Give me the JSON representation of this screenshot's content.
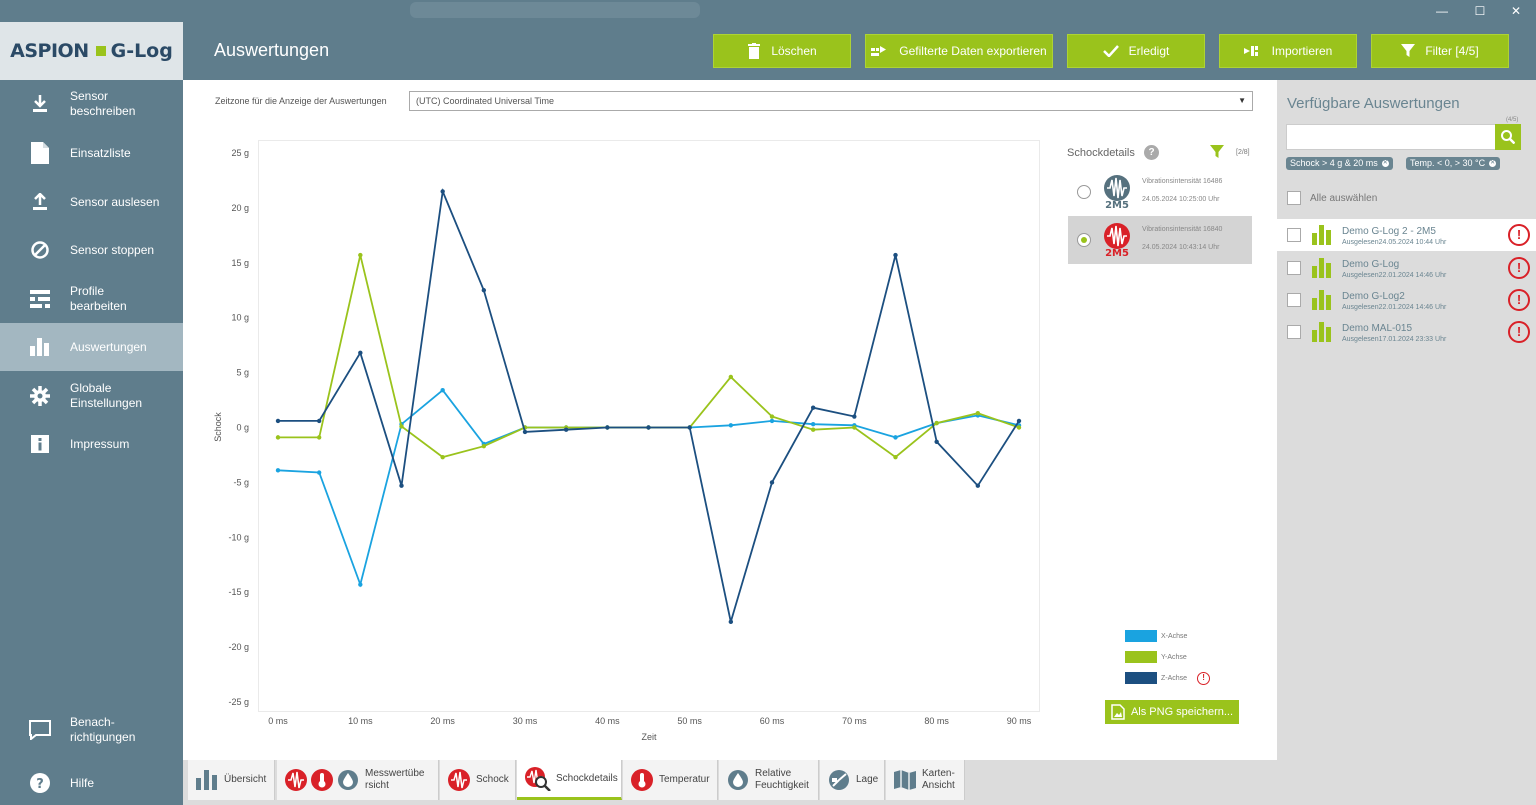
{
  "window": {
    "minimize": "—",
    "maximize": "☐",
    "close": "✕"
  },
  "logo": {
    "part1": "ASPION",
    "part2": "G-Log"
  },
  "header": {
    "title": "Auswertungen",
    "buttons": [
      "Löschen",
      "Gefilterte Daten exportieren",
      "Erledigt",
      "Importieren",
      "Filter [4/5]"
    ]
  },
  "sidebar": {
    "items": [
      {
        "label": "Sensor\nbeschreiben",
        "icon": "download-icon"
      },
      {
        "label": "Einsatzliste",
        "icon": "document-icon"
      },
      {
        "label": "Sensor auslesen",
        "icon": "upload-icon"
      },
      {
        "label": "Sensor stoppen",
        "icon": "stop-icon"
      },
      {
        "label": "Profile\nbearbeiten",
        "icon": "profile-icon"
      },
      {
        "label": "Auswertungen",
        "icon": "bar-chart-icon"
      },
      {
        "label": "Globale\nEinstellungen",
        "icon": "gear-icon"
      },
      {
        "label": "Impressum",
        "icon": "info-icon"
      }
    ],
    "notifications": "Benach-\nrichtigungen",
    "help": "Hilfe"
  },
  "timezone": {
    "label": "Zeitzone für die Anzeige der Auswertungen",
    "value": "(UTC) Coordinated Universal Time"
  },
  "chart_data": {
    "type": "line",
    "xlabel": "Zeit",
    "ylabel": "Schock",
    "ylim": [
      -25,
      25
    ],
    "xlim": [
      0,
      90
    ],
    "yticks": [
      "25 g",
      "20 g",
      "15 g",
      "10 g",
      "5 g",
      "0 g",
      "-5 g",
      "-10 g",
      "-15 g",
      "-20 g",
      "-25 g"
    ],
    "xticks": [
      "0 ms",
      "10 ms",
      "20 ms",
      "30 ms",
      "40 ms",
      "50 ms",
      "60 ms",
      "70 ms",
      "80 ms",
      "90 ms"
    ],
    "x": [
      0,
      5,
      10,
      15,
      20,
      25,
      30,
      35,
      40,
      45,
      50,
      55,
      60,
      65,
      70,
      75,
      80,
      85,
      90
    ],
    "series": [
      {
        "name": "X-Achse",
        "color": "#1aa3e0",
        "values": [
          -3.9,
          -4.1,
          -14.3,
          0.3,
          3.4,
          -1.5,
          0,
          0,
          0,
          0,
          0,
          0.2,
          0.6,
          0.3,
          0.2,
          -0.9,
          0.4,
          1.1,
          0.2
        ]
      },
      {
        "name": "Y-Achse",
        "color": "#9ac31c",
        "values": [
          -0.9,
          -0.9,
          15.7,
          0.1,
          -2.7,
          -1.7,
          0,
          0,
          0,
          0,
          0,
          4.6,
          1,
          -0.2,
          0,
          -2.7,
          0.4,
          1.3,
          0
        ]
      },
      {
        "name": "Z-Achse",
        "color": "#1c4f80",
        "values": [
          0.6,
          0.6,
          6.8,
          -5.3,
          21.5,
          12.5,
          -0.4,
          -0.2,
          0,
          0,
          0,
          -17.7,
          -5,
          1.8,
          1,
          15.7,
          -1.3,
          -5.3,
          0.6
        ]
      }
    ]
  },
  "shock_details": {
    "title": "Schockdetails",
    "help": "?",
    "count": "[2/8]",
    "items": [
      {
        "title": "Vibrationsintensität 16486",
        "time": "24.05.2024 10:25:00 Uhr",
        "badge": "2M5",
        "selected": false
      },
      {
        "title": "Vibrationsintensität 16840",
        "time": "24.05.2024 10:43:14 Uhr",
        "badge": "2M5",
        "selected": true
      }
    ]
  },
  "legend": [
    {
      "label": "X-Achse",
      "color": "#1aa3e0"
    },
    {
      "label": "Y-Achse",
      "color": "#9ac31c"
    },
    {
      "label": "Z-Achse",
      "color": "#1c4f80"
    }
  ],
  "png_button": "Als PNG speichern...",
  "tabs": [
    "Übersicht",
    "Messwertübe\nrsicht",
    "Schock",
    "Schockdetails",
    "Temperatur",
    "Relative\nFeuchtigkeit",
    "Lage",
    "Karten-\nAnsicht"
  ],
  "right_panel": {
    "title": "Verfügbare Auswertungen",
    "count": "(4/5)",
    "search_value": "",
    "chips": [
      "Schock > 4 g & 20 ms",
      "Temp. < 0, > 30 °C"
    ],
    "select_all": "Alle auswählen",
    "devices": [
      {
        "name": "Demo G-Log 2 - 2M5",
        "read": "Ausgelesen24.05.2024 10:44 Uhr",
        "selected": true
      },
      {
        "name": "Demo G-Log",
        "read": "Ausgelesen22.01.2024 14:46 Uhr",
        "selected": false
      },
      {
        "name": "Demo G-Log2",
        "read": "Ausgelesen22.01.2024 14:46 Uhr",
        "selected": false
      },
      {
        "name": "Demo MAL-015",
        "read": "Ausgelesen17.01.2024 23:33 Uhr",
        "selected": false
      }
    ]
  }
}
